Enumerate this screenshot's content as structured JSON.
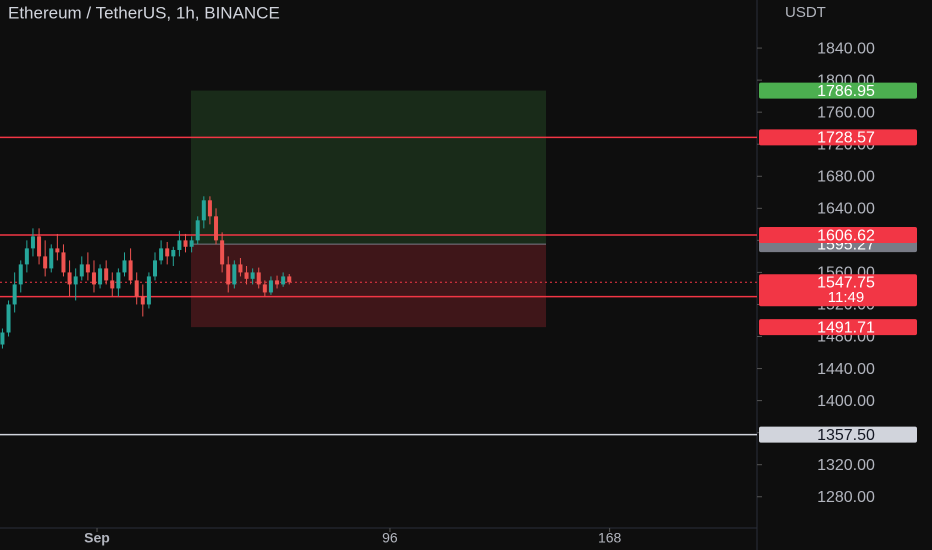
{
  "chart_data": {
    "type": "candlestick",
    "title": "Ethereum / TetherUS, 1h, BINANCE",
    "y_axis_label": "USDT",
    "x": [
      -31,
      -29,
      -27,
      -25,
      -23,
      -21,
      -19,
      -17,
      -15,
      -13,
      -11,
      -9,
      -7,
      -5,
      -3,
      -1,
      1,
      3,
      5,
      7,
      9,
      11,
      13,
      15,
      17,
      19,
      21,
      23,
      25,
      27,
      29,
      31,
      33,
      35,
      37,
      39,
      41,
      43,
      45,
      47,
      49,
      51,
      53,
      55,
      57,
      59,
      61,
      63
    ],
    "open": [
      1470,
      1485,
      1520,
      1545,
      1570,
      1590,
      1605,
      1580,
      1565,
      1590,
      1585,
      1560,
      1545,
      1555,
      1570,
      1560,
      1545,
      1565,
      1550,
      1540,
      1560,
      1575,
      1550,
      1530,
      1520,
      1555,
      1575,
      1590,
      1580,
      1588,
      1600,
      1592,
      1600,
      1625,
      1650,
      1630,
      1600,
      1570,
      1545,
      1570,
      1560,
      1552,
      1560,
      1545,
      1535,
      1550,
      1545,
      1555
    ],
    "high": [
      1490,
      1525,
      1560,
      1575,
      1600,
      1615,
      1615,
      1600,
      1595,
      1608,
      1595,
      1575,
      1565,
      1580,
      1585,
      1575,
      1570,
      1575,
      1560,
      1565,
      1585,
      1590,
      1560,
      1545,
      1560,
      1585,
      1600,
      1598,
      1592,
      1612,
      1608,
      1605,
      1630,
      1655,
      1655,
      1640,
      1610,
      1580,
      1575,
      1578,
      1568,
      1565,
      1566,
      1550,
      1555,
      1556,
      1560,
      1558
    ],
    "low": [
      1465,
      1480,
      1510,
      1535,
      1560,
      1580,
      1570,
      1555,
      1560,
      1575,
      1555,
      1530,
      1525,
      1550,
      1550,
      1535,
      1540,
      1545,
      1530,
      1530,
      1555,
      1545,
      1520,
      1505,
      1515,
      1550,
      1570,
      1570,
      1568,
      1580,
      1585,
      1585,
      1595,
      1615,
      1620,
      1595,
      1560,
      1535,
      1540,
      1555,
      1545,
      1545,
      1540,
      1530,
      1532,
      1540,
      1542,
      1545
    ],
    "close": [
      1485,
      1520,
      1545,
      1570,
      1590,
      1605,
      1580,
      1565,
      1590,
      1585,
      1560,
      1545,
      1555,
      1570,
      1560,
      1545,
      1565,
      1550,
      1540,
      1560,
      1575,
      1550,
      1530,
      1520,
      1555,
      1575,
      1590,
      1580,
      1588,
      1600,
      1592,
      1600,
      1625,
      1650,
      1630,
      1600,
      1570,
      1545,
      1570,
      1560,
      1552,
      1560,
      1545,
      1535,
      1550,
      1545,
      1555,
      1547.75
    ],
    "up_color": "#26a69a",
    "down_color": "#ef5350",
    "xlim": [
      -31.8,
      216.3
    ],
    "xticks": [
      {
        "value": 0,
        "label": "Sep"
      },
      96,
      168
    ],
    "ylim": [
      1241,
      1900
    ],
    "yticks": [
      {
        "value": 1280,
        "label": "1280.00"
      },
      {
        "value": 1320,
        "label": "1320.00"
      },
      {
        "value": 1360,
        "label": "1360.00"
      },
      {
        "value": 1400,
        "label": "1400.00"
      },
      {
        "value": 1440,
        "label": "1440.00"
      },
      {
        "value": 1480,
        "label": "1480.00"
      },
      {
        "value": 1520,
        "label": "1520.00"
      },
      {
        "value": 1560,
        "label": "1560.00"
      },
      {
        "value": 1600,
        "label": "1600.00"
      },
      {
        "value": 1640,
        "label": "1640.00"
      },
      {
        "value": 1680,
        "label": "1680.00"
      },
      {
        "value": 1720,
        "label": "1720.00"
      },
      {
        "value": 1760,
        "label": "1760.00"
      },
      {
        "value": 1800,
        "label": "1800.00"
      },
      {
        "value": 1840,
        "label": "1840.00"
      }
    ],
    "grid": false,
    "position": {
      "target": 1786.95,
      "entry": 1595.27,
      "stop": 1491.71,
      "target_color": "#4caf50",
      "entry_color": "#787b86",
      "stop_color": "#f23645"
    },
    "levels": [
      {
        "price": 1728.57,
        "color": "#f23645"
      },
      {
        "price": 1606.62,
        "color": "#f23645"
      },
      {
        "price": 1529.71,
        "color": "#f23645"
      },
      {
        "price": 1357.5,
        "price_label": "1357.50",
        "color": "#d1d4dc"
      }
    ],
    "last_price": 1547.75,
    "countdown": "11:49",
    "last_price_color": "#f23645"
  }
}
